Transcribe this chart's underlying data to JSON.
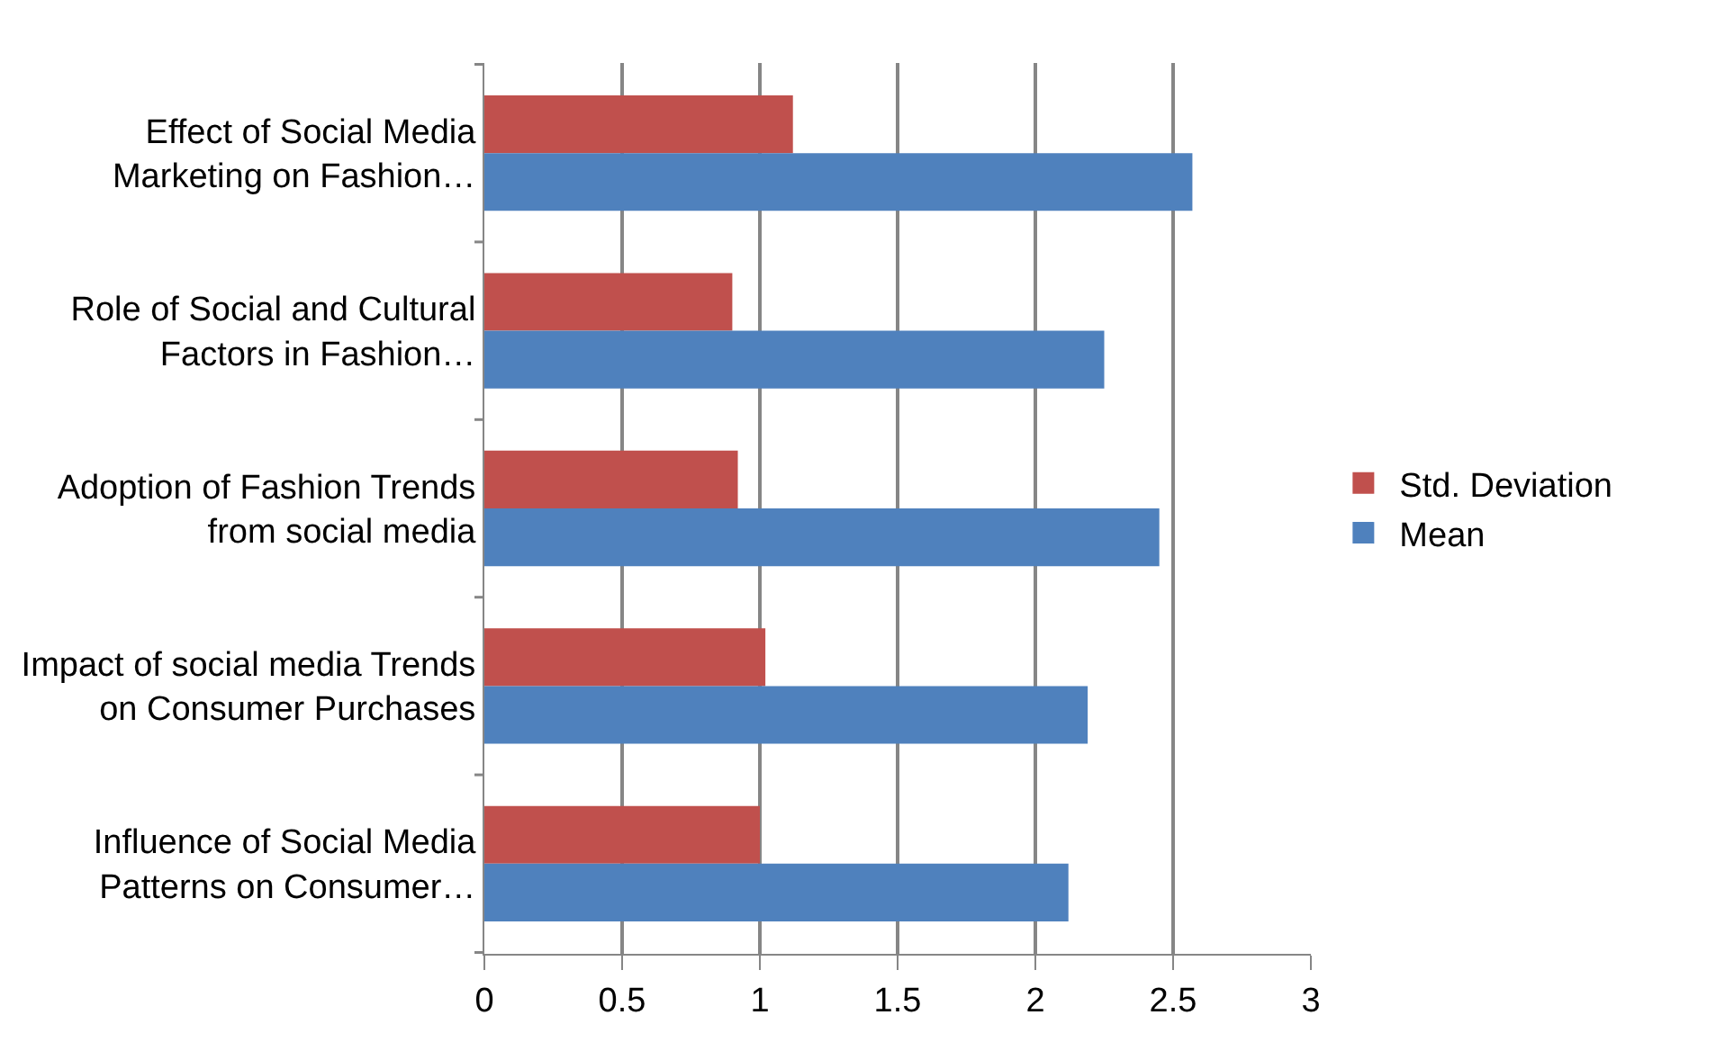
{
  "chart_data": {
    "type": "bar",
    "orientation": "horizontal",
    "categories": [
      "Effect of Social Media\nMarketing on Fashion…",
      "Role of Social and Cultural\nFactors in Fashion…",
      "Adoption of Fashion Trends\nfrom social media",
      "Impact of social media Trends\non Consumer Purchases",
      "Influence of Social Media\nPatterns on Consumer…"
    ],
    "series": [
      {
        "name": "Std. Deviation",
        "color": "#c0504d",
        "values": [
          1.12,
          0.9,
          0.92,
          1.02,
          1.0
        ]
      },
      {
        "name": "Mean",
        "color": "#4f81bd",
        "values": [
          2.57,
          2.25,
          2.45,
          2.19,
          2.12
        ]
      }
    ],
    "xlim": [
      0,
      3
    ],
    "xticks": [
      0,
      0.5,
      1,
      1.5,
      2,
      2.5,
      3
    ],
    "grid": "x",
    "legend": "right"
  }
}
